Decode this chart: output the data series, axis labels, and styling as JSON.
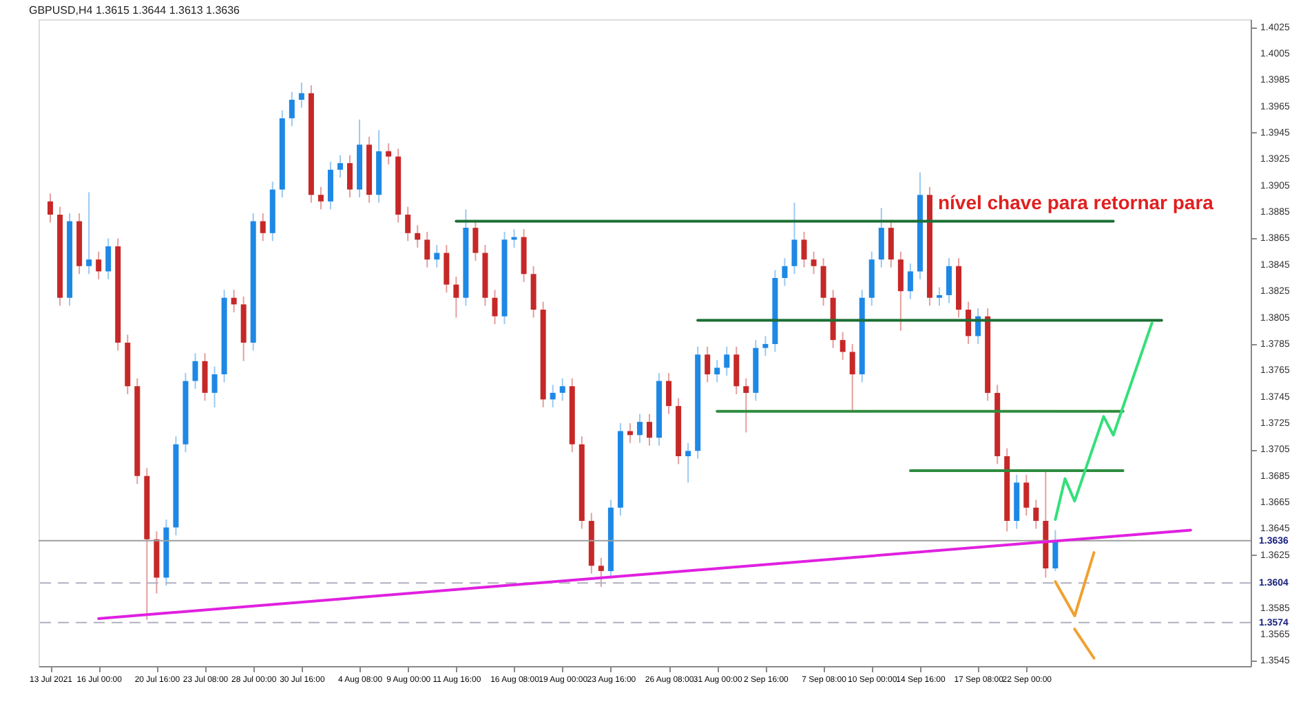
{
  "chart_data": {
    "type": "candlestick",
    "title": "GBPUSD,H4  1.3615 1.3644 1.3613 1.3636",
    "annotations": [
      "nível chave para retornar para"
    ],
    "ylim": [
      1.3541,
      1.4031
    ],
    "yticks": [
      1.4025,
      1.4005,
      1.3985,
      1.3965,
      1.3945,
      1.3925,
      1.3905,
      1.3885,
      1.3865,
      1.3845,
      1.3825,
      1.3805,
      1.3785,
      1.3765,
      1.3745,
      1.3725,
      1.3705,
      1.3685,
      1.3665,
      1.3645,
      1.3625,
      {
        "value": 1.3605,
        "label": null
      },
      1.3585,
      1.3565,
      1.3545
    ],
    "ref_lines": [
      {
        "axis": "y",
        "value": 1.3636,
        "label": "1.3636",
        "color": "#9e9e9e",
        "line_style": "solid"
      },
      {
        "axis": "y",
        "value": 1.3604,
        "label": "1.3604",
        "color": "#b0b0c0",
        "line_style": "dashed"
      },
      {
        "axis": "y",
        "value": 1.3574,
        "label": "1.3574",
        "color": "#b0b0c0",
        "line_style": "dashed"
      }
    ],
    "categories": [
      "13 Jul 2021",
      null,
      null,
      null,
      null,
      "16 Jul 00:00",
      null,
      null,
      null,
      null,
      null,
      "20 Jul 16:00",
      null,
      null,
      null,
      null,
      "23 Jul 08:00",
      null,
      null,
      null,
      null,
      "28 Jul 00:00",
      null,
      null,
      null,
      null,
      "30 Jul 16:00",
      null,
      null,
      null,
      null,
      null,
      "4 Aug 08:00",
      null,
      null,
      null,
      null,
      "9 Aug 00:00",
      null,
      null,
      null,
      null,
      "11 Aug 16:00",
      null,
      null,
      null,
      null,
      null,
      "16 Aug 08:00",
      null,
      null,
      null,
      null,
      "19 Aug 00:00",
      null,
      null,
      null,
      null,
      "23 Aug 16:00",
      null,
      null,
      null,
      null,
      null,
      "26 Aug 08:00",
      null,
      null,
      null,
      null,
      "31 Aug 00:00",
      null,
      null,
      null,
      null,
      "2 Sep 16:00",
      null,
      null,
      null,
      null,
      null,
      "7 Sep 08:00",
      null,
      null,
      null,
      null,
      "10 Sep 00:00",
      null,
      null,
      null,
      null,
      "14 Sep 16:00",
      null,
      null,
      null,
      null,
      null,
      "17 Sep 08:00",
      null,
      null,
      null,
      null,
      "22 Sep 00:00",
      null,
      null,
      null,
      null,
      null,
      null,
      null,
      null,
      null,
      null,
      null,
      null,
      null,
      null,
      null,
      null,
      null,
      null,
      null,
      null,
      null,
      null
    ],
    "ohlc": [
      [
        1.3893,
        1.3899,
        1.3877,
        1.3883
      ],
      [
        1.3883,
        1.3889,
        1.3814,
        1.382
      ],
      [
        1.382,
        1.3884,
        1.3814,
        1.3878
      ],
      [
        1.3878,
        1.3884,
        1.3838,
        1.3844
      ],
      [
        1.3844,
        1.39,
        1.3838,
        1.3849
      ],
      [
        1.3849,
        1.3855,
        1.3834,
        1.384
      ],
      [
        1.384,
        1.3865,
        1.3834,
        1.3859
      ],
      [
        1.3859,
        1.3865,
        1.378,
        1.3786
      ],
      [
        1.3786,
        1.3792,
        1.3747,
        1.3753
      ],
      [
        1.3753,
        1.3759,
        1.3679,
        1.3685
      ],
      [
        1.3685,
        1.3691,
        1.3576,
        1.3637
      ],
      [
        1.3637,
        1.3643,
        1.3596,
        1.3608
      ],
      [
        1.3608,
        1.3652,
        1.3602,
        1.3646
      ],
      [
        1.3646,
        1.3715,
        1.364,
        1.3709
      ],
      [
        1.3709,
        1.3763,
        1.3703,
        1.3757
      ],
      [
        1.3757,
        1.3778,
        1.3751,
        1.3772
      ],
      [
        1.3772,
        1.3778,
        1.3742,
        1.3748
      ],
      [
        1.3748,
        1.3768,
        1.3737,
        1.3762
      ],
      [
        1.3762,
        1.3826,
        1.3756,
        1.382
      ],
      [
        1.382,
        1.3826,
        1.3809,
        1.3815
      ],
      [
        1.3815,
        1.3821,
        1.3772,
        1.3786
      ],
      [
        1.3786,
        1.3884,
        1.378,
        1.3878
      ],
      [
        1.3878,
        1.3884,
        1.3863,
        1.3869
      ],
      [
        1.3869,
        1.3908,
        1.3863,
        1.3902
      ],
      [
        1.3902,
        1.3962,
        1.3896,
        1.3956
      ],
      [
        1.3956,
        1.3976,
        1.395,
        1.397
      ],
      [
        1.397,
        1.3983,
        1.3964,
        1.3975
      ],
      [
        1.3975,
        1.3981,
        1.3892,
        1.3898
      ],
      [
        1.3898,
        1.3904,
        1.3887,
        1.3893
      ],
      [
        1.3893,
        1.3923,
        1.3887,
        1.3917
      ],
      [
        1.3917,
        1.3928,
        1.3911,
        1.3922
      ],
      [
        1.3922,
        1.3928,
        1.3896,
        1.3902
      ],
      [
        1.3902,
        1.3955,
        1.3896,
        1.3936
      ],
      [
        1.3936,
        1.3942,
        1.3892,
        1.3898
      ],
      [
        1.3898,
        1.3947,
        1.3892,
        1.3931
      ],
      [
        1.3931,
        1.3937,
        1.3921,
        1.3927
      ],
      [
        1.3927,
        1.3933,
        1.3877,
        1.3883
      ],
      [
        1.3883,
        1.3889,
        1.3863,
        1.3869
      ],
      [
        1.3869,
        1.3875,
        1.3858,
        1.3864
      ],
      [
        1.3864,
        1.387,
        1.3843,
        1.3849
      ],
      [
        1.3849,
        1.386,
        1.3843,
        1.3854
      ],
      [
        1.3854,
        1.386,
        1.3824,
        1.383
      ],
      [
        1.383,
        1.3836,
        1.3805,
        1.382
      ],
      [
        1.382,
        1.3887,
        1.3814,
        1.3873
      ],
      [
        1.3873,
        1.3879,
        1.3848,
        1.3854
      ],
      [
        1.3854,
        1.386,
        1.3814,
        1.382
      ],
      [
        1.382,
        1.3826,
        1.38,
        1.3806
      ],
      [
        1.3806,
        1.387,
        1.38,
        1.3864
      ],
      [
        1.3864,
        1.3872,
        1.3858,
        1.3866
      ],
      [
        1.3866,
        1.3872,
        1.3832,
        1.3838
      ],
      [
        1.3838,
        1.3844,
        1.3805,
        1.3811
      ],
      [
        1.3811,
        1.3817,
        1.3737,
        1.3743
      ],
      [
        1.3743,
        1.3754,
        1.3737,
        1.3748
      ],
      [
        1.3748,
        1.3759,
        1.3742,
        1.3753
      ],
      [
        1.3753,
        1.3759,
        1.3703,
        1.3709
      ],
      [
        1.3709,
        1.3715,
        1.3645,
        1.3651
      ],
      [
        1.3651,
        1.3657,
        1.3611,
        1.3617
      ],
      [
        1.3617,
        1.3623,
        1.3601,
        1.3613
      ],
      [
        1.3613,
        1.3667,
        1.3607,
        1.3661
      ],
      [
        1.3661,
        1.3725,
        1.3655,
        1.3719
      ],
      [
        1.3719,
        1.3725,
        1.371,
        1.3716
      ],
      [
        1.3716,
        1.3732,
        1.371,
        1.3726
      ],
      [
        1.3726,
        1.3732,
        1.3708,
        1.3714
      ],
      [
        1.3714,
        1.3763,
        1.3708,
        1.3757
      ],
      [
        1.3757,
        1.3763,
        1.3732,
        1.3738
      ],
      [
        1.3738,
        1.3744,
        1.3694,
        1.37
      ],
      [
        1.37,
        1.371,
        1.368,
        1.3704
      ],
      [
        1.3704,
        1.3783,
        1.3698,
        1.3777
      ],
      [
        1.3777,
        1.3783,
        1.3756,
        1.3762
      ],
      [
        1.3762,
        1.3773,
        1.3756,
        1.3767
      ],
      [
        1.3767,
        1.3783,
        1.3761,
        1.3777
      ],
      [
        1.3777,
        1.3783,
        1.3747,
        1.3753
      ],
      [
        1.3753,
        1.3759,
        1.3718,
        1.3748
      ],
      [
        1.3748,
        1.3788,
        1.3742,
        1.3782
      ],
      [
        1.3782,
        1.3791,
        1.3776,
        1.3785
      ],
      [
        1.3785,
        1.3841,
        1.3779,
        1.3835
      ],
      [
        1.3835,
        1.385,
        1.3829,
        1.3844
      ],
      [
        1.3844,
        1.3892,
        1.3838,
        1.3864
      ],
      [
        1.3864,
        1.387,
        1.3843,
        1.3849
      ],
      [
        1.3849,
        1.3855,
        1.3838,
        1.3844
      ],
      [
        1.3844,
        1.385,
        1.3814,
        1.382
      ],
      [
        1.382,
        1.3826,
        1.3782,
        1.3788
      ],
      [
        1.3788,
        1.3794,
        1.3773,
        1.3779
      ],
      [
        1.3779,
        1.3785,
        1.3733,
        1.3762
      ],
      [
        1.3762,
        1.3826,
        1.3756,
        1.382
      ],
      [
        1.382,
        1.3855,
        1.3814,
        1.3849
      ],
      [
        1.3849,
        1.3888,
        1.3843,
        1.3873
      ],
      [
        1.3873,
        1.3879,
        1.3843,
        1.3849
      ],
      [
        1.3849,
        1.3855,
        1.3795,
        1.3825
      ],
      [
        1.3825,
        1.3846,
        1.3819,
        1.384
      ],
      [
        1.384,
        1.3915,
        1.3834,
        1.3898
      ],
      [
        1.3898,
        1.3904,
        1.3814,
        1.382
      ],
      [
        1.382,
        1.3828,
        1.3814,
        1.3822
      ],
      [
        1.3822,
        1.385,
        1.3816,
        1.3844
      ],
      [
        1.3844,
        1.385,
        1.3805,
        1.3811
      ],
      [
        1.3811,
        1.3817,
        1.3785,
        1.3791
      ],
      [
        1.3791,
        1.3812,
        1.3785,
        1.3806
      ],
      [
        1.3806,
        1.3812,
        1.3742,
        1.3748
      ],
      [
        1.3748,
        1.3754,
        1.3694,
        1.37
      ],
      [
        1.37,
        1.3706,
        1.3643,
        1.3651
      ],
      [
        1.3651,
        1.3686,
        1.3645,
        1.368
      ],
      [
        1.368,
        1.3686,
        1.3655,
        1.3661
      ],
      [
        1.3661,
        1.3667,
        1.3645,
        1.3651
      ],
      [
        1.3651,
        1.369,
        1.3608,
        1.3615
      ],
      [
        1.3615,
        1.3644,
        1.3613,
        1.3636
      ],
      null,
      null,
      null,
      null,
      null,
      null,
      null,
      null,
      null,
      null,
      null,
      null,
      null,
      null,
      null,
      null,
      null,
      null,
      null
    ],
    "colors": [
      "#c62828",
      "#c62828",
      "#1e88e5",
      "#c62828",
      "#1e88e5",
      "#c62828",
      "#1e88e5",
      "#c62828",
      "#c62828",
      "#c62828",
      "#c62828",
      "#c62828",
      "#1e88e5",
      "#1e88e5",
      "#1e88e5",
      "#1e88e5",
      "#c62828",
      "#1e88e5",
      "#1e88e5",
      "#c62828",
      "#c62828",
      "#1e88e5",
      "#c62828",
      "#1e88e5",
      "#1e88e5",
      "#1e88e5",
      "#1e88e5",
      "#c62828",
      "#c62828",
      "#1e88e5",
      "#1e88e5",
      "#c62828",
      "#1e88e5",
      "#c62828",
      "#1e88e5",
      "#c62828",
      "#c62828",
      "#c62828",
      "#c62828",
      "#c62828",
      "#1e88e5",
      "#c62828",
      "#c62828",
      "#1e88e5",
      "#c62828",
      "#c62828",
      "#c62828",
      "#1e88e5",
      "#1e88e5",
      "#c62828",
      "#c62828",
      "#c62828",
      "#1e88e5",
      "#1e88e5",
      "#c62828",
      "#c62828",
      "#c62828",
      "#c62828",
      "#1e88e5",
      "#1e88e5",
      "#c62828",
      "#1e88e5",
      "#c62828",
      "#1e88e5",
      "#c62828",
      "#c62828",
      "#1e88e5",
      "#1e88e5",
      "#c62828",
      "#1e88e5",
      "#1e88e5",
      "#c62828",
      "#c62828",
      "#1e88e5",
      "#1e88e5",
      "#1e88e5",
      "#1e88e5",
      "#1e88e5",
      "#c62828",
      "#c62828",
      "#c62828",
      "#c62828",
      "#c62828",
      "#c62828",
      "#1e88e5",
      "#1e88e5",
      "#1e88e5",
      "#c62828",
      "#c62828",
      "#1e88e5",
      "#1e88e5",
      "#c62828",
      "#1e88e5",
      "#1e88e5",
      "#c62828",
      "#c62828",
      "#1e88e5",
      "#c62828",
      "#c62828",
      "#c62828",
      "#1e88e5",
      "#c62828",
      "#c62828",
      "#c62828",
      "#1e88e5",
      null,
      null,
      null,
      null,
      null,
      null,
      null,
      null,
      null,
      null,
      null,
      null,
      null,
      null,
      null,
      null,
      null,
      null,
      null
    ],
    "series": [
      {
        "type": "line",
        "color": "#1b6e34",
        "values": [
          null,
          null,
          null,
          null,
          null,
          null,
          null,
          null,
          null,
          null,
          null,
          null,
          null,
          null,
          null,
          null,
          null,
          null,
          null,
          null,
          null,
          null,
          null,
          null,
          null,
          null,
          null,
          null,
          null,
          null,
          null,
          null,
          null,
          null,
          null,
          null,
          null,
          null,
          null,
          null,
          null,
          null,
          1.3878,
          null,
          null,
          null,
          null,
          null,
          null,
          null,
          null,
          null,
          null,
          null,
          null,
          null,
          null,
          null,
          null,
          null,
          null,
          null,
          null,
          null,
          null,
          null,
          null,
          null,
          null,
          null,
          null,
          null,
          null,
          null,
          null,
          null,
          null,
          null,
          null,
          null,
          null,
          null,
          null,
          null,
          null,
          null,
          null,
          null,
          null,
          null,
          null,
          null,
          null,
          null,
          null,
          null,
          null,
          null,
          null,
          null,
          null,
          null,
          null,
          null,
          null,
          null,
          null,
          null,
          null,
          null,
          1.3878,
          null,
          null,
          null,
          null,
          null,
          null,
          null,
          null,
          null,
          null,
          null,
          null,
          null
        ]
      },
      {
        "type": "line",
        "color": "#1b6e34",
        "values": [
          null,
          null,
          null,
          null,
          null,
          null,
          null,
          null,
          null,
          null,
          null,
          null,
          null,
          null,
          null,
          null,
          null,
          null,
          null,
          null,
          null,
          null,
          null,
          null,
          null,
          null,
          null,
          null,
          null,
          null,
          null,
          null,
          null,
          null,
          null,
          null,
          null,
          null,
          null,
          null,
          null,
          null,
          null,
          null,
          null,
          null,
          null,
          null,
          null,
          null,
          null,
          null,
          null,
          null,
          null,
          null,
          null,
          null,
          null,
          null,
          null,
          null,
          null,
          null,
          null,
          null,
          null,
          1.3803,
          null,
          null,
          null,
          null,
          null,
          null,
          null,
          null,
          null,
          null,
          null,
          null,
          null,
          null,
          null,
          null,
          null,
          null,
          null,
          null,
          null,
          null,
          null,
          null,
          null,
          null,
          null,
          null,
          null,
          null,
          null,
          null,
          null,
          null,
          null,
          null,
          null,
          null,
          null,
          null,
          null,
          null,
          null,
          null,
          null,
          null,
          null,
          1.3803,
          null,
          null,
          null,
          null,
          null,
          null,
          null,
          null
        ]
      },
      {
        "type": "line",
        "color": "#2e8b3e",
        "values": [
          null,
          null,
          null,
          null,
          null,
          null,
          null,
          null,
          null,
          null,
          null,
          null,
          null,
          null,
          null,
          null,
          null,
          null,
          null,
          null,
          null,
          null,
          null,
          null,
          null,
          null,
          null,
          null,
          null,
          null,
          null,
          null,
          null,
          null,
          null,
          null,
          null,
          null,
          null,
          null,
          null,
          null,
          null,
          null,
          null,
          null,
          null,
          null,
          null,
          null,
          null,
          null,
          null,
          null,
          null,
          null,
          null,
          null,
          null,
          null,
          null,
          null,
          null,
          null,
          null,
          null,
          null,
          null,
          null,
          1.3734,
          null,
          null,
          null,
          null,
          null,
          null,
          null,
          null,
          null,
          null,
          null,
          null,
          null,
          null,
          null,
          null,
          null,
          null,
          null,
          null,
          null,
          null,
          null,
          null,
          null,
          null,
          null,
          null,
          null,
          null,
          null,
          null,
          null,
          null,
          null,
          null,
          null,
          null,
          null,
          null,
          null,
          1.3734,
          null,
          null,
          null,
          null,
          null,
          null,
          null,
          null,
          null,
          null,
          null,
          null
        ]
      },
      {
        "type": "line",
        "color": "#2e8b3e",
        "values": [
          null,
          null,
          null,
          null,
          null,
          null,
          null,
          null,
          null,
          null,
          null,
          null,
          null,
          null,
          null,
          null,
          null,
          null,
          null,
          null,
          null,
          null,
          null,
          null,
          null,
          null,
          null,
          null,
          null,
          null,
          null,
          null,
          null,
          null,
          null,
          null,
          null,
          null,
          null,
          null,
          null,
          null,
          null,
          null,
          null,
          null,
          null,
          null,
          null,
          null,
          null,
          null,
          null,
          null,
          null,
          null,
          null,
          null,
          null,
          null,
          null,
          null,
          null,
          null,
          null,
          null,
          null,
          null,
          null,
          null,
          null,
          null,
          null,
          null,
          null,
          null,
          null,
          null,
          null,
          null,
          null,
          null,
          null,
          null,
          null,
          null,
          null,
          null,
          null,
          1.3689,
          null,
          null,
          null,
          null,
          null,
          null,
          null,
          null,
          null,
          null,
          null,
          null,
          null,
          null,
          null,
          null,
          null,
          null,
          null,
          null,
          null,
          1.3689,
          null,
          null,
          null,
          null,
          null,
          null,
          null,
          null,
          null,
          null,
          null,
          null
        ]
      },
      {
        "type": "line",
        "color": "#e020e0",
        "values": [
          null,
          null,
          null,
          null,
          null,
          1.3577,
          null,
          null,
          null,
          null,
          null,
          null,
          null,
          null,
          null,
          null,
          null,
          null,
          null,
          null,
          null,
          null,
          null,
          null,
          null,
          null,
          null,
          null,
          null,
          null,
          null,
          null,
          null,
          null,
          null,
          null,
          null,
          null,
          null,
          null,
          null,
          null,
          null,
          null,
          null,
          null,
          null,
          null,
          null,
          null,
          null,
          null,
          null,
          null,
          null,
          null,
          null,
          null,
          null,
          null,
          null,
          null,
          null,
          null,
          null,
          null,
          null,
          null,
          null,
          null,
          null,
          null,
          null,
          null,
          null,
          null,
          null,
          null,
          null,
          null,
          null,
          null,
          null,
          null,
          null,
          null,
          null,
          null,
          null,
          null,
          null,
          null,
          null,
          null,
          null,
          null,
          null,
          null,
          null,
          null,
          null,
          null,
          null,
          null,
          null,
          null,
          null,
          null,
          null,
          null,
          null,
          null,
          null,
          null,
          null,
          null,
          null,
          null,
          1.3644,
          null,
          null,
          null,
          null,
          null
        ]
      },
      {
        "type": "line",
        "color": "#33e07a",
        "values": [
          null,
          null,
          null,
          null,
          null,
          null,
          null,
          null,
          null,
          null,
          null,
          null,
          null,
          null,
          null,
          null,
          null,
          null,
          null,
          null,
          null,
          null,
          null,
          null,
          null,
          null,
          null,
          null,
          null,
          null,
          null,
          null,
          null,
          null,
          null,
          null,
          null,
          null,
          null,
          null,
          null,
          null,
          null,
          null,
          null,
          null,
          null,
          null,
          null,
          null,
          null,
          null,
          null,
          null,
          null,
          null,
          null,
          null,
          null,
          null,
          null,
          null,
          null,
          null,
          null,
          null,
          null,
          null,
          null,
          null,
          null,
          null,
          null,
          null,
          null,
          null,
          null,
          null,
          null,
          null,
          null,
          null,
          null,
          null,
          null,
          null,
          null,
          null,
          null,
          null,
          null,
          null,
          null,
          null,
          null,
          null,
          null,
          null,
          null,
          null,
          null,
          null,
          null,
          null,
          1.3652,
          1.3683,
          1.3666,
          null,
          null,
          1.373,
          1.3716,
          null,
          null,
          null,
          1.3801,
          null,
          null,
          null,
          null,
          null,
          null,
          null,
          null,
          null
        ]
      },
      {
        "type": "line",
        "color": "#f0a030",
        "values": [
          null,
          null,
          null,
          null,
          null,
          null,
          null,
          null,
          null,
          null,
          null,
          null,
          null,
          null,
          null,
          null,
          null,
          null,
          null,
          null,
          null,
          null,
          null,
          null,
          null,
          null,
          null,
          null,
          null,
          null,
          null,
          null,
          null,
          null,
          null,
          null,
          null,
          null,
          null,
          null,
          null,
          null,
          null,
          null,
          null,
          null,
          null,
          null,
          null,
          null,
          null,
          null,
          null,
          null,
          null,
          null,
          null,
          null,
          null,
          null,
          null,
          null,
          null,
          null,
          null,
          null,
          null,
          null,
          null,
          null,
          null,
          null,
          null,
          null,
          null,
          null,
          null,
          null,
          null,
          null,
          null,
          null,
          null,
          null,
          null,
          null,
          null,
          null,
          null,
          null,
          null,
          null,
          null,
          null,
          null,
          null,
          null,
          null,
          null,
          null,
          null,
          null,
          null,
          null,
          1.3605,
          null,
          1.3579,
          null,
          1.3627,
          null,
          null,
          null,
          null,
          null,
          null,
          null,
          null,
          null,
          null,
          null,
          null,
          null,
          null,
          null
        ]
      },
      {
        "type": "line",
        "color": "#f0a030",
        "values": [
          null,
          null,
          null,
          null,
          null,
          null,
          null,
          null,
          null,
          null,
          null,
          null,
          null,
          null,
          null,
          null,
          null,
          null,
          null,
          null,
          null,
          null,
          null,
          null,
          null,
          null,
          null,
          null,
          null,
          null,
          null,
          null,
          null,
          null,
          null,
          null,
          null,
          null,
          null,
          null,
          null,
          null,
          null,
          null,
          null,
          null,
          null,
          null,
          null,
          null,
          null,
          null,
          null,
          null,
          null,
          null,
          null,
          null,
          null,
          null,
          null,
          null,
          null,
          null,
          null,
          null,
          null,
          null,
          null,
          null,
          null,
          null,
          null,
          null,
          null,
          null,
          null,
          null,
          null,
          null,
          null,
          null,
          null,
          null,
          null,
          null,
          null,
          null,
          null,
          null,
          null,
          null,
          null,
          null,
          null,
          null,
          null,
          null,
          null,
          null,
          null,
          null,
          null,
          null,
          null,
          null,
          1.3569,
          null,
          1.3547,
          null,
          null,
          null,
          null,
          null,
          null,
          null,
          null,
          null,
          null,
          null,
          null,
          null,
          null,
          null
        ]
      }
    ]
  }
}
